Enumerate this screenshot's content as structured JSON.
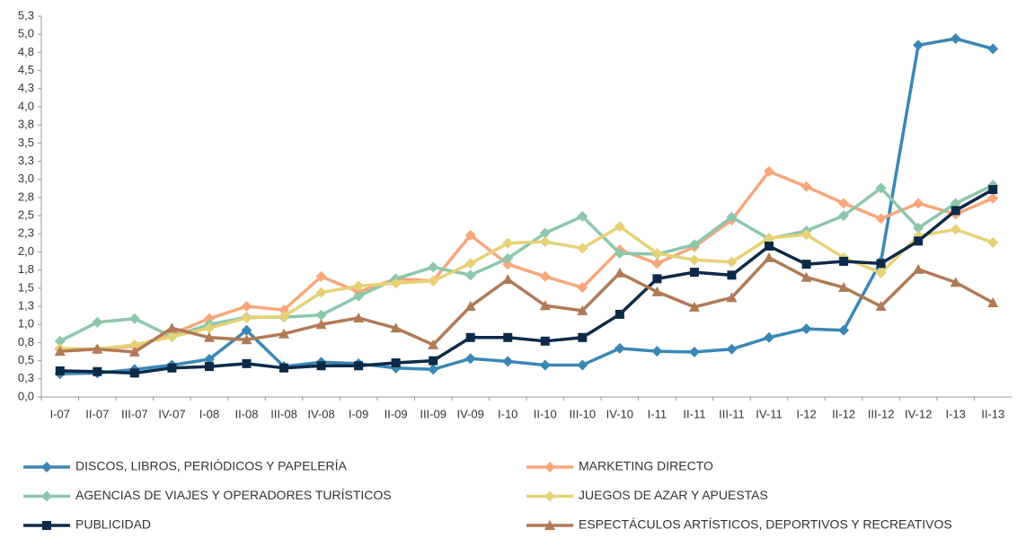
{
  "chart_data": {
    "type": "line",
    "categories": [
      "I-07",
      "II-07",
      "III-07",
      "IV-07",
      "I-08",
      "II-08",
      "III-08",
      "IV-08",
      "I-09",
      "II-09",
      "III-09",
      "IV-09",
      "I-10",
      "II-10",
      "III-10",
      "IV-10",
      "I-11",
      "II-11",
      "III-11",
      "IV-11",
      "I-12",
      "II-12",
      "III-12",
      "IV-12",
      "I-13",
      "II-13"
    ],
    "ylim": [
      0,
      5.25
    ],
    "yticks": [
      {
        "value": 0,
        "label": "0,0"
      },
      {
        "value": 0.25,
        "label": "0,3"
      },
      {
        "value": 0.5,
        "label": "0,5"
      },
      {
        "value": 0.75,
        "label": "0,8"
      },
      {
        "value": 1,
        "label": "1,0"
      },
      {
        "value": 1.25,
        "label": "1,3"
      },
      {
        "value": 1.5,
        "label": "1,5"
      },
      {
        "value": 1.75,
        "label": "1,8"
      },
      {
        "value": 2,
        "label": "2,0"
      },
      {
        "value": 2.25,
        "label": "2,3"
      },
      {
        "value": 2.5,
        "label": "2,5"
      },
      {
        "value": 2.75,
        "label": "2,8"
      },
      {
        "value": 3,
        "label": "3,0"
      },
      {
        "value": 3.25,
        "label": "3,3"
      },
      {
        "value": 3.5,
        "label": "3,5"
      },
      {
        "value": 3.75,
        "label": "3,8"
      },
      {
        "value": 4,
        "label": "4,0"
      },
      {
        "value": 4.25,
        "label": "4,3"
      },
      {
        "value": 4.5,
        "label": "4,5"
      },
      {
        "value": 4.75,
        "label": "4,8"
      },
      {
        "value": 5,
        "label": "5,0"
      },
      {
        "value": 5.25,
        "label": "5,3"
      }
    ],
    "grid": false,
    "series": [
      {
        "name": "DISCOS, LIBROS, PERIÓDICOS Y PAPELERÍA",
        "color": "#3a87b5",
        "marker": "diamond",
        "values": [
          0.32,
          0.33,
          0.38,
          0.44,
          0.52,
          0.92,
          0.42,
          0.48,
          0.46,
          0.4,
          0.38,
          0.53,
          0.49,
          0.44,
          0.44,
          0.67,
          0.63,
          0.62,
          0.66,
          0.82,
          0.94,
          0.92,
          1.87,
          4.85,
          4.94,
          4.8
        ]
      },
      {
        "name": "MARKETING DIRECTO",
        "color": "#f8a77b",
        "marker": "diamond",
        "values": [
          0.66,
          0.66,
          0.7,
          0.87,
          1.08,
          1.25,
          1.2,
          1.66,
          1.45,
          1.63,
          1.6,
          2.23,
          1.83,
          1.66,
          1.51,
          2.03,
          1.84,
          2.07,
          2.44,
          3.11,
          2.9,
          2.67,
          2.46,
          2.67,
          2.52,
          2.74
        ]
      },
      {
        "name": "AGENCIAS DE VIAJES Y OPERADORES TURÍSTICOS",
        "color": "#8cc7ab",
        "marker": "diamond",
        "values": [
          0.77,
          1.03,
          1.08,
          0.83,
          1.0,
          1.1,
          1.1,
          1.13,
          1.39,
          1.63,
          1.79,
          1.68,
          1.91,
          2.26,
          2.49,
          1.98,
          1.97,
          2.1,
          2.48,
          2.18,
          2.29,
          2.5,
          2.88,
          2.33,
          2.67,
          2.92
        ]
      },
      {
        "name": "JUEGOS DE AZAR Y APUESTAS",
        "color": "#e6d176",
        "marker": "diamond",
        "values": [
          0.67,
          0.66,
          0.72,
          0.83,
          0.95,
          1.09,
          1.11,
          1.44,
          1.53,
          1.57,
          1.6,
          1.84,
          2.12,
          2.14,
          2.05,
          2.35,
          1.98,
          1.89,
          1.86,
          2.19,
          2.24,
          1.92,
          1.71,
          2.22,
          2.31,
          2.13
        ]
      },
      {
        "name": "PUBLICIDAD",
        "color": "#0c2a48",
        "marker": "square",
        "values": [
          0.36,
          0.35,
          0.33,
          0.4,
          0.42,
          0.46,
          0.4,
          0.43,
          0.43,
          0.47,
          0.5,
          0.82,
          0.82,
          0.77,
          0.82,
          1.14,
          1.63,
          1.72,
          1.68,
          2.08,
          1.83,
          1.87,
          1.84,
          2.15,
          2.57,
          2.86
        ]
      },
      {
        "name": "ESPECTÁCULOS ARTÍSTICOS, DEPORTIVOS Y RECREATIVOS",
        "color": "#b07a56",
        "marker": "triangle",
        "values": [
          0.63,
          0.66,
          0.62,
          0.95,
          0.82,
          0.79,
          0.87,
          1.0,
          1.09,
          0.95,
          0.72,
          1.25,
          1.62,
          1.26,
          1.19,
          1.71,
          1.45,
          1.24,
          1.37,
          1.92,
          1.65,
          1.51,
          1.25,
          1.76,
          1.58,
          1.3
        ]
      }
    ]
  }
}
